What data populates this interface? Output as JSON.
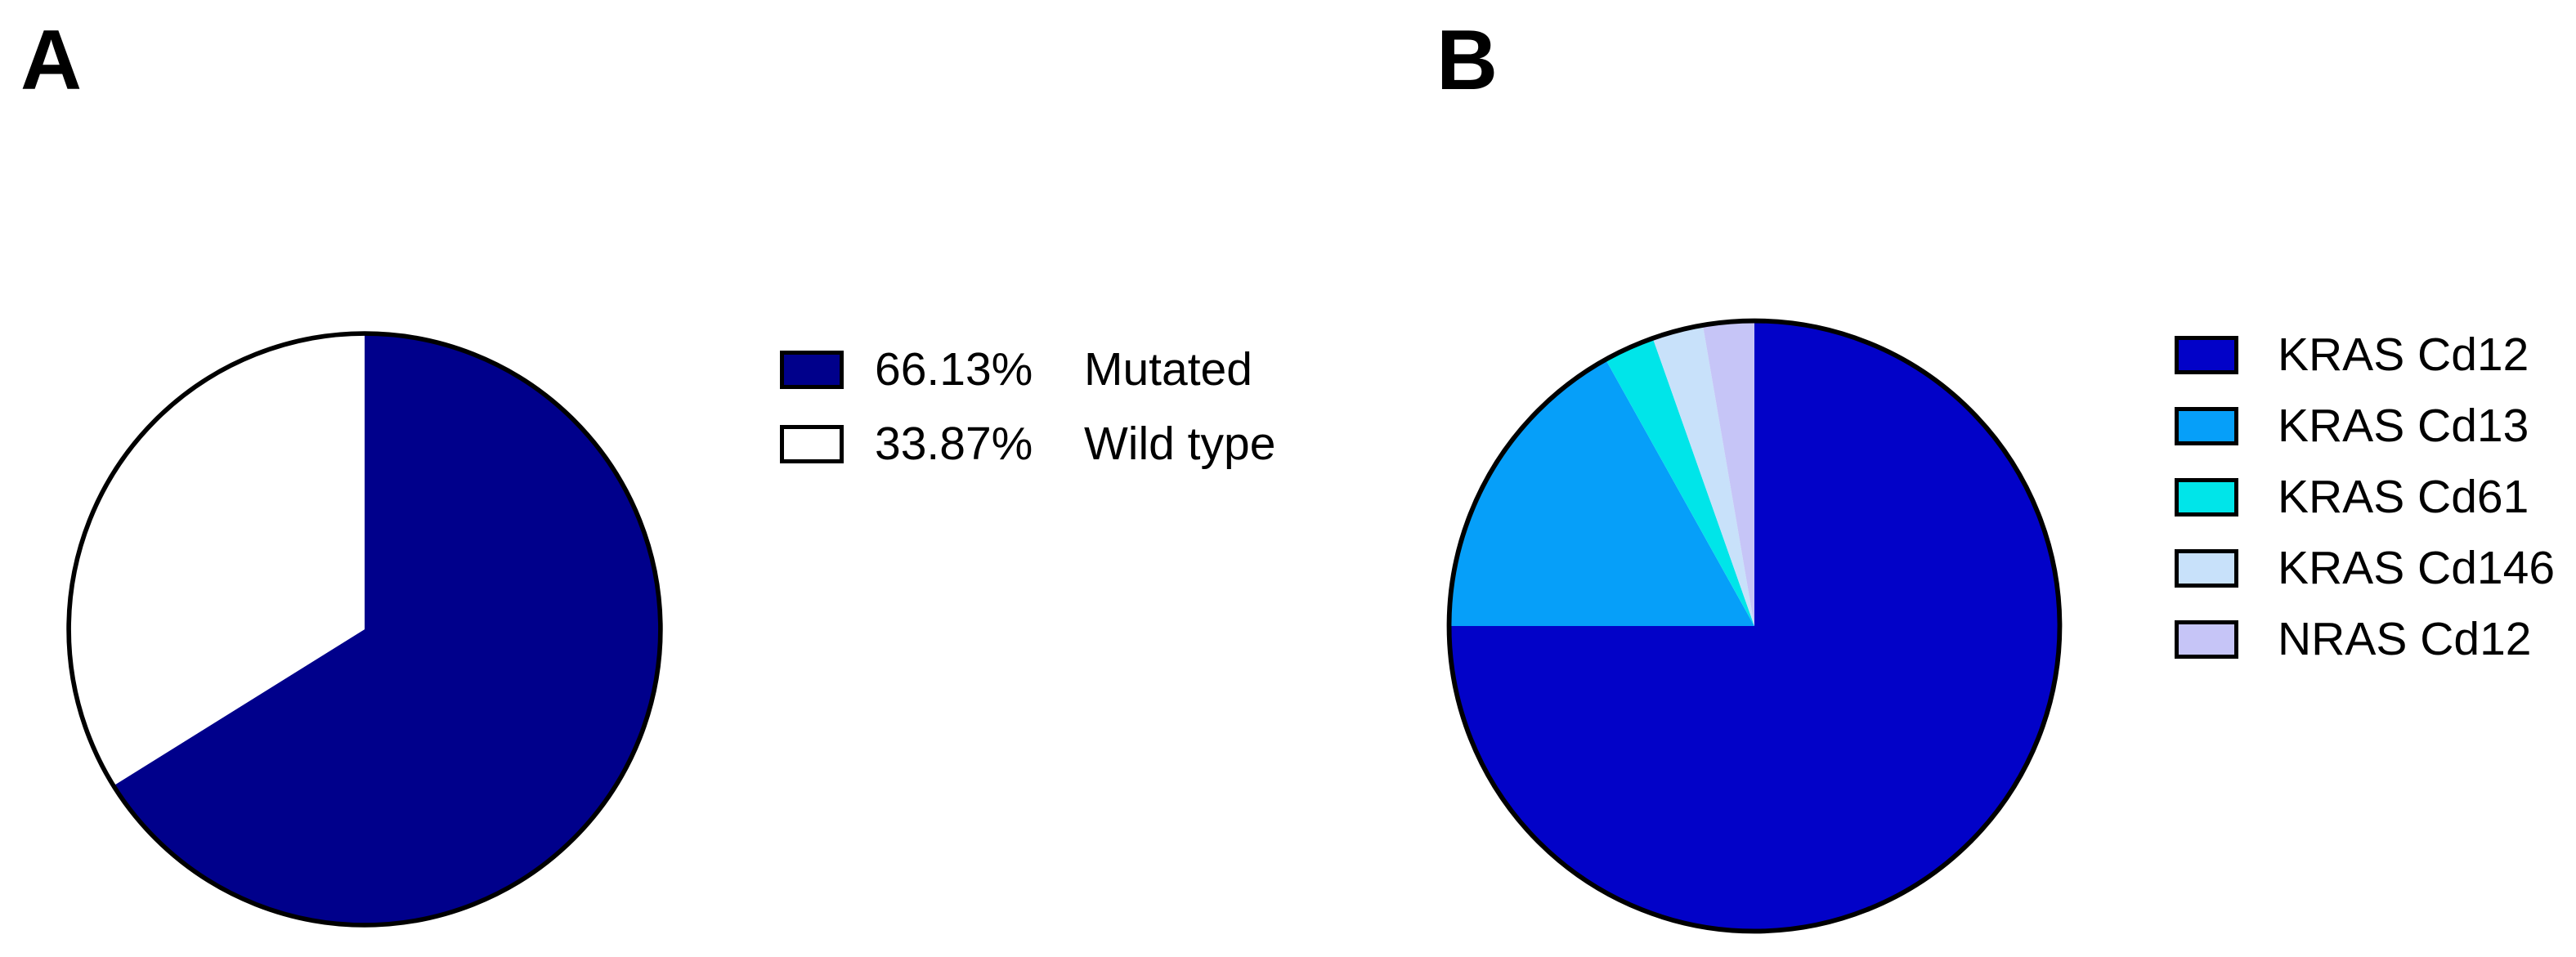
{
  "figure": {
    "background": "#FFFFFF",
    "panels": [
      {
        "label": "A"
      },
      {
        "label": "B"
      }
    ]
  },
  "chart_data": [
    {
      "type": "pie",
      "title": "",
      "start_angle_deg": 0,
      "direction": "clockwise",
      "outline_color": "#000000",
      "legend_position": "right",
      "slices": [
        {
          "label": "Mutated",
          "value_pct": 66.13,
          "color": "#00008B"
        },
        {
          "label": "Wild type",
          "value_pct": 33.87,
          "color": "#FFFFFF"
        }
      ],
      "legend": {
        "entries": [
          {
            "value": "66.13%",
            "label": "Mutated",
            "swatch_color": "#00008B"
          },
          {
            "value": "33.87%",
            "label": "Wild type",
            "swatch_color": "#FFFFFF"
          }
        ]
      }
    },
    {
      "type": "pie",
      "title": "",
      "start_angle_deg": 0,
      "direction": "clockwise",
      "outline_color": "#000000",
      "legend_position": "right",
      "slices": [
        {
          "label": "KRAS Cd12",
          "value_pct": 75.0,
          "color": "#0202C8"
        },
        {
          "label": "KRAS Cd13",
          "value_pct": 16.9,
          "color": "#069FF9"
        },
        {
          "label": "KRAS Cd61",
          "value_pct": 2.7,
          "color": "#00E5E9"
        },
        {
          "label": "KRAS Cd146",
          "value_pct": 2.7,
          "color": "#C8E1FA"
        },
        {
          "label": "NRAS Cd12",
          "value_pct": 2.7,
          "color": "#C6C5F7"
        }
      ],
      "legend": {
        "entries": [
          {
            "label": "KRAS Cd12",
            "swatch_color": "#0202C8"
          },
          {
            "label": "KRAS Cd13",
            "swatch_color": "#069FF9"
          },
          {
            "label": "KRAS Cd61",
            "swatch_color": "#00E5E9"
          },
          {
            "label": "KRAS Cd146",
            "swatch_color": "#C8E1FA"
          },
          {
            "label": "NRAS Cd12",
            "swatch_color": "#C6C5F7"
          }
        ]
      }
    }
  ]
}
